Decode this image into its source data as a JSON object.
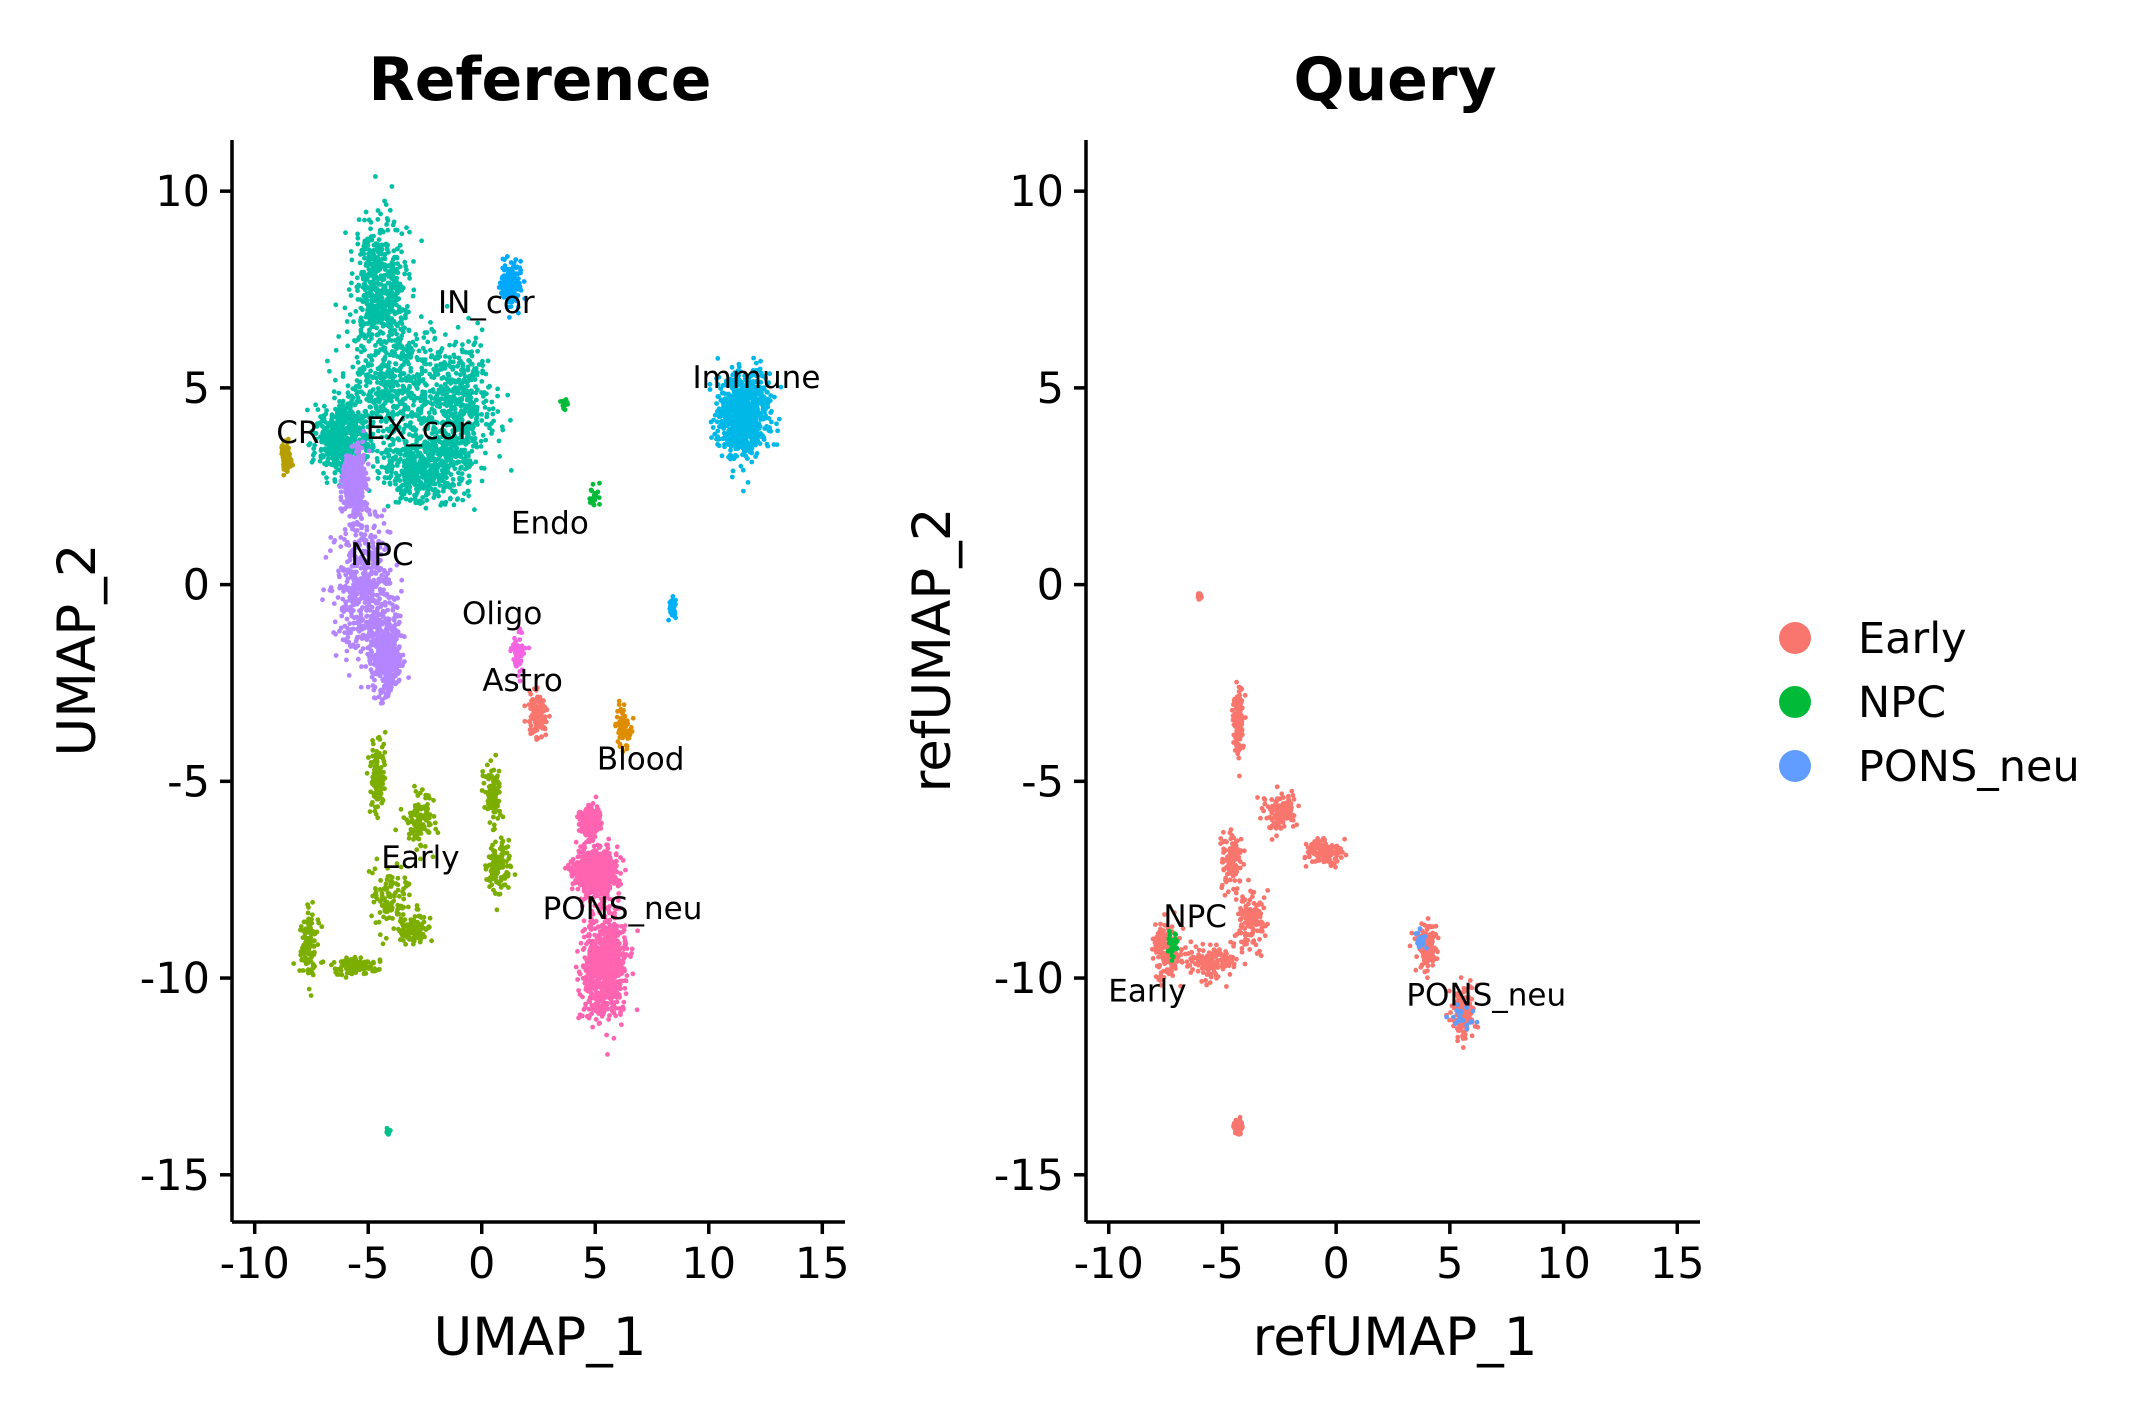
{
  "chart_data": [
    {
      "type": "scatter",
      "title": "Reference",
      "xlabel": "UMAP_1",
      "ylabel": "UMAP_2",
      "xlim": [
        -11,
        16
      ],
      "ylim": [
        -16.2,
        11.3
      ],
      "xticks": [
        -10,
        -5,
        0,
        5,
        10,
        15
      ],
      "yticks": [
        -15,
        -10,
        -5,
        0,
        5,
        10
      ],
      "xtick_labels": [
        "-10",
        "-5",
        "0",
        "5",
        "10",
        "15"
      ],
      "ytick_labels": [
        "-15",
        "-10",
        "-5",
        "0",
        "5",
        "10"
      ],
      "grid": false,
      "clusters": [
        {
          "name": "EX_cor",
          "color": "#00BFA4",
          "n": 2600,
          "blobs": [
            [
              -4.5,
              7.5,
              1.1,
              1.6
            ],
            [
              -3.8,
              5.0,
              2.0,
              1.4
            ],
            [
              -1.0,
              4.5,
              1.4,
              1.5
            ],
            [
              -6.2,
              3.7,
              1.0,
              0.8
            ],
            [
              -2.5,
              3.0,
              1.6,
              0.8
            ]
          ]
        },
        {
          "name": "IN_cor",
          "color": "#00A9FF",
          "n": 160,
          "blobs": [
            [
              1.3,
              7.6,
              0.4,
              0.5
            ]
          ]
        },
        {
          "name": "Immune",
          "color": "#00B8E7",
          "n": 900,
          "blobs": [
            [
              11.5,
              4.3,
              1.0,
              0.9
            ]
          ]
        },
        {
          "name": "CR",
          "color": "#B79F00",
          "n": 70,
          "blobs": [
            [
              -8.6,
              3.2,
              0.25,
              0.35
            ]
          ]
        },
        {
          "name": "Endo",
          "color": "#00BA38",
          "n": 40,
          "blobs": [
            [
              5.0,
              2.2,
              0.2,
              0.3
            ],
            [
              3.7,
              4.6,
              0.2,
              0.12
            ]
          ]
        },
        {
          "name": "NPC",
          "color": "#B385FF",
          "n": 1500,
          "blobs": [
            [
              -5.2,
              0.0,
              1.2,
              1.6
            ],
            [
              -4.2,
              -1.8,
              0.6,
              0.9
            ],
            [
              -5.6,
              2.5,
              0.4,
              0.8
            ]
          ]
        },
        {
          "name": "Oligo",
          "color": "#F564E3",
          "n": 60,
          "blobs": [
            [
              1.6,
              -1.8,
              0.25,
              0.5
            ]
          ]
        },
        {
          "name": "Astro",
          "color": "#F8766D",
          "n": 130,
          "blobs": [
            [
              2.5,
              -3.3,
              0.4,
              0.5
            ]
          ]
        },
        {
          "name": "Blood",
          "color": "#DE8C00",
          "n": 80,
          "blobs": [
            [
              6.2,
              -3.6,
              0.3,
              0.5
            ]
          ]
        },
        {
          "name": "Early",
          "color": "#7CAE00",
          "n": 900,
          "blobs": [
            [
              -4.6,
              -4.8,
              0.3,
              0.9
            ],
            [
              -4.0,
              -8.0,
              0.8,
              0.7
            ],
            [
              -7.6,
              -9.0,
              0.4,
              0.9
            ],
            [
              -2.8,
              -6.0,
              0.6,
              0.6
            ],
            [
              0.7,
              -7.2,
              0.5,
              0.6
            ],
            [
              0.5,
              -5.3,
              0.3,
              0.7
            ],
            [
              -5.5,
              -9.7,
              0.8,
              0.2
            ],
            [
              -3.0,
              -8.8,
              0.6,
              0.3
            ]
          ]
        },
        {
          "name": "PONS_neu",
          "color": "#FF64B0",
          "n": 2300,
          "blobs": [
            [
              5.4,
              -9.7,
              0.9,
              1.2
            ],
            [
              5.0,
              -7.3,
              0.8,
              0.5
            ],
            [
              4.8,
              -6.0,
              0.3,
              0.3
            ]
          ]
        },
        {
          "name": "",
          "color": "#00C08B",
          "n": 12,
          "blobs": [
            [
              -4.1,
              -13.9,
              0.08,
              0.12
            ]
          ]
        },
        {
          "name": "",
          "color": "#00B0F6",
          "n": 30,
          "blobs": [
            [
              8.4,
              -0.6,
              0.2,
              0.3
            ]
          ]
        }
      ],
      "annotations": [
        {
          "text": "IN_cor",
          "x": 0.2,
          "y": 6.9
        },
        {
          "text": "Immune",
          "x": 12.1,
          "y": 5.0
        },
        {
          "text": "CR",
          "x": -8.1,
          "y": 3.6
        },
        {
          "text": "EX_cor",
          "x": -2.8,
          "y": 3.7
        },
        {
          "text": "Endo",
          "x": 3.0,
          "y": 1.3
        },
        {
          "text": "NPC",
          "x": -4.4,
          "y": 0.5
        },
        {
          "text": "Oligo",
          "x": 0.9,
          "y": -1.0
        },
        {
          "text": "Astro",
          "x": 1.8,
          "y": -2.7
        },
        {
          "text": "Blood",
          "x": 7.0,
          "y": -4.7
        },
        {
          "text": "Early",
          "x": -2.7,
          "y": -7.2
        },
        {
          "text": "PONS_neu",
          "x": 6.2,
          "y": -8.5
        }
      ]
    },
    {
      "type": "scatter",
      "title": "Query",
      "xlabel": "refUMAP_1",
      "ylabel": "refUMAP_2",
      "xlim": [
        -11,
        16
      ],
      "ylim": [
        -16.2,
        11.3
      ],
      "xticks": [
        -10,
        -5,
        0,
        5,
        10,
        15
      ],
      "yticks": [
        -15,
        -10,
        -5,
        0,
        5,
        10
      ],
      "xtick_labels": [
        "-10",
        "-5",
        "0",
        "5",
        "10",
        "15"
      ],
      "ytick_labels": [
        "-15",
        "-10",
        "-5",
        "0",
        "5",
        "10"
      ],
      "grid": false,
      "clusters": [
        {
          "name": "Early",
          "color": "#F8766D",
          "n": 1500,
          "blobs": [
            [
              -7.5,
              -9.3,
              0.6,
              0.7
            ],
            [
              -5.5,
              -9.6,
              1.2,
              0.4
            ],
            [
              -3.8,
              -8.5,
              0.6,
              0.7
            ],
            [
              -4.6,
              -7.0,
              0.4,
              0.6
            ],
            [
              -2.5,
              -5.8,
              0.7,
              0.4
            ],
            [
              -0.5,
              -6.8,
              0.7,
              0.3
            ],
            [
              4.0,
              -9.2,
              0.4,
              0.5
            ],
            [
              5.6,
              -10.9,
              0.4,
              0.6
            ],
            [
              -4.3,
              -3.5,
              0.2,
              0.8
            ],
            [
              -4.3,
              -13.8,
              0.15,
              0.15
            ],
            [
              -6.0,
              -0.3,
              0.05,
              0.05
            ]
          ]
        },
        {
          "name": "NPC",
          "color": "#00BA38",
          "n": 40,
          "blobs": [
            [
              -7.2,
              -9.1,
              0.2,
              0.3
            ]
          ]
        },
        {
          "name": "PONS_neu",
          "color": "#619CFF",
          "n": 45,
          "blobs": [
            [
              3.7,
              -9.1,
              0.25,
              0.25
            ],
            [
              5.5,
              -11.0,
              0.5,
              0.3
            ]
          ]
        }
      ],
      "annotations": [
        {
          "text": "NPC",
          "x": -6.2,
          "y": -8.7
        },
        {
          "text": "Early",
          "x": -8.3,
          "y": -10.6
        },
        {
          "text": "PONS_neu",
          "x": 6.6,
          "y": -10.7
        }
      ]
    }
  ],
  "legend": {
    "placement": "right",
    "items": [
      {
        "label": "Early",
        "color": "#F8766D"
      },
      {
        "label": "NPC",
        "color": "#00BA38"
      },
      {
        "label": "PONS_neu",
        "color": "#619CFF"
      }
    ]
  }
}
